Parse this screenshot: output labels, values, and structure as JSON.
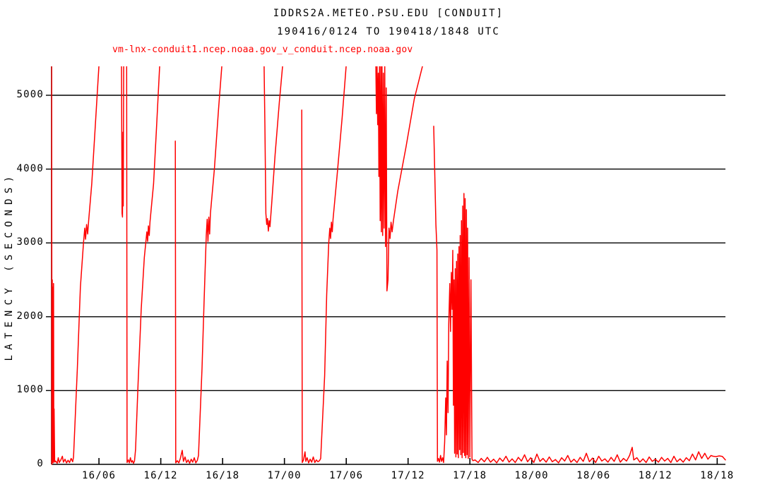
{
  "header": {
    "title": "IDDRS2A.METEO.PSU.EDU [CONDUIT]",
    "subtitle": "190416/0124 TO 190418/1848 UTC"
  },
  "colors": {
    "trace": "#ff0000",
    "axis": "#000000",
    "background": "#ffffff"
  },
  "chart_data": {
    "type": "line",
    "title": "IDDRS2A.METEO.PSU.EDU [CONDUIT]",
    "subtitle": "190416/0124 TO 190418/1848 UTC",
    "xlabel": "",
    "ylabel": "LATENCY (SECONDS)",
    "x_unit": "hours since 2019-04-16 00:00 UTC, tick labels are DD/HH",
    "xlim": [
      1.4,
      66.8
    ],
    "ylim": [
      0,
      5390
    ],
    "clip_note": "trace clipped at top of plot (~5390 s); gaps = off-scale high",
    "grid": "horizontal gridlines at labeled y ticks",
    "legend_position": "top-left above plot",
    "y_ticks": [
      {
        "v": 0,
        "label": "0"
      },
      {
        "v": 1000,
        "label": "1000"
      },
      {
        "v": 2000,
        "label": "2000"
      },
      {
        "v": 3000,
        "label": "3000"
      },
      {
        "v": 4000,
        "label": "4000"
      },
      {
        "v": 5000,
        "label": "5000"
      }
    ],
    "x_ticks": [
      {
        "t": 6,
        "label": "16/06"
      },
      {
        "t": 12,
        "label": "16/12"
      },
      {
        "t": 18,
        "label": "16/18"
      },
      {
        "t": 24,
        "label": "17/00"
      },
      {
        "t": 30,
        "label": "17/06"
      },
      {
        "t": 36,
        "label": "17/12"
      },
      {
        "t": 42,
        "label": "17/18"
      },
      {
        "t": 48,
        "label": "18/00"
      },
      {
        "t": 54,
        "label": "18/06"
      },
      {
        "t": 60,
        "label": "18/12"
      },
      {
        "t": 66,
        "label": "18/18"
      }
    ],
    "series": [
      {
        "name": "vm-lnx-conduit1.ncep.noaa.gov_v_conduit.ncep.noaa.gov",
        "color": "#ff0000",
        "points": [
          [
            1.4,
            20
          ],
          [
            1.41,
            5390
          ],
          [
            1.44,
            0
          ],
          [
            1.47,
            2500
          ],
          [
            1.5,
            30
          ],
          [
            1.53,
            2400
          ],
          [
            1.56,
            20
          ],
          [
            1.59,
            2450
          ],
          [
            1.62,
            40
          ],
          [
            1.65,
            750
          ],
          [
            1.7,
            30
          ],
          [
            1.8,
            45
          ],
          [
            1.95,
            15
          ],
          [
            2.05,
            90
          ],
          [
            2.15,
            25
          ],
          [
            2.3,
            60
          ],
          [
            2.45,
            110
          ],
          [
            2.55,
            30
          ],
          [
            2.7,
            70
          ],
          [
            2.85,
            20
          ],
          [
            3.0,
            55
          ],
          [
            3.15,
            25
          ],
          [
            3.3,
            80
          ],
          [
            3.45,
            35
          ],
          [
            3.53,
            100
          ],
          [
            3.9,
            1300
          ],
          [
            4.2,
            2400
          ],
          [
            4.5,
            3000
          ],
          [
            4.62,
            3200
          ],
          [
            4.7,
            3050
          ],
          [
            4.8,
            3250
          ],
          [
            4.9,
            3120
          ],
          [
            5.0,
            3300
          ],
          [
            5.3,
            3800
          ],
          [
            5.65,
            4600
          ],
          [
            5.99,
            5390
          ],
          null,
          [
            8.19,
            5390
          ],
          [
            8.24,
            3400
          ],
          [
            8.28,
            3350
          ],
          [
            8.33,
            4500
          ],
          [
            8.36,
            3500
          ],
          [
            8.4,
            5390
          ],
          null,
          [
            8.69,
            5390
          ],
          [
            8.73,
            25
          ],
          [
            8.85,
            60
          ],
          [
            8.95,
            20
          ],
          [
            9.05,
            90
          ],
          [
            9.15,
            30
          ],
          [
            9.25,
            50
          ],
          [
            9.35,
            15
          ],
          [
            9.45,
            45
          ],
          [
            9.55,
            200
          ],
          [
            9.8,
            1100
          ],
          [
            10.1,
            2100
          ],
          [
            10.4,
            2800
          ],
          [
            10.65,
            3150
          ],
          [
            10.72,
            3020
          ],
          [
            10.8,
            3230
          ],
          [
            10.88,
            3100
          ],
          [
            10.95,
            3280
          ],
          [
            11.3,
            3800
          ],
          [
            11.6,
            4600
          ],
          [
            11.89,
            5390
          ],
          null,
          [
            13.41,
            4380
          ],
          [
            13.45,
            20
          ],
          [
            13.6,
            50
          ],
          [
            13.75,
            20
          ],
          [
            13.9,
            80
          ],
          [
            14.08,
            190
          ],
          [
            14.2,
            40
          ],
          [
            14.35,
            100
          ],
          [
            14.5,
            25
          ],
          [
            14.65,
            60
          ],
          [
            14.8,
            15
          ],
          [
            14.95,
            70
          ],
          [
            15.1,
            30
          ],
          [
            15.25,
            90
          ],
          [
            15.4,
            20
          ],
          [
            15.55,
            55
          ],
          [
            15.66,
            120
          ],
          [
            16.0,
            1300
          ],
          [
            16.2,
            2200
          ],
          [
            16.41,
            3100
          ],
          [
            16.5,
            3320
          ],
          [
            16.58,
            3020
          ],
          [
            16.66,
            3350
          ],
          [
            16.74,
            3120
          ],
          [
            16.82,
            3400
          ],
          [
            17.2,
            4000
          ],
          [
            17.6,
            4800
          ],
          [
            17.92,
            5390
          ],
          null,
          [
            22.03,
            5390
          ],
          [
            22.1,
            4600
          ],
          [
            22.2,
            3400
          ],
          [
            22.28,
            3250
          ],
          [
            22.36,
            3330
          ],
          [
            22.44,
            3160
          ],
          [
            22.52,
            3300
          ],
          [
            22.6,
            3220
          ],
          [
            22.75,
            3500
          ],
          [
            23.1,
            4200
          ],
          [
            23.5,
            4900
          ],
          [
            23.82,
            5390
          ],
          null,
          [
            25.68,
            4800
          ],
          [
            25.73,
            25
          ],
          [
            25.85,
            60
          ],
          [
            26.0,
            170
          ],
          [
            26.08,
            40
          ],
          [
            26.2,
            90
          ],
          [
            26.35,
            20
          ],
          [
            26.5,
            70
          ],
          [
            26.65,
            30
          ],
          [
            26.8,
            100
          ],
          [
            26.95,
            25
          ],
          [
            27.1,
            60
          ],
          [
            27.25,
            35
          ],
          [
            27.4,
            50
          ],
          [
            27.52,
            80
          ],
          [
            27.9,
            1200
          ],
          [
            28.1,
            2300
          ],
          [
            28.3,
            3000
          ],
          [
            28.4,
            3200
          ],
          [
            28.48,
            3060
          ],
          [
            28.56,
            3280
          ],
          [
            28.64,
            3150
          ],
          [
            28.72,
            3320
          ],
          [
            29.1,
            3900
          ],
          [
            29.6,
            4700
          ],
          [
            29.99,
            5390
          ],
          null,
          [
            32.87,
            5390
          ],
          [
            32.93,
            4750
          ],
          [
            32.99,
            5390
          ],
          [
            33.05,
            4600
          ],
          [
            33.11,
            5300
          ],
          [
            33.17,
            3900
          ],
          [
            33.23,
            5390
          ],
          [
            33.29,
            3300
          ],
          [
            33.35,
            5390
          ],
          [
            33.41,
            3150
          ],
          [
            33.47,
            5390
          ],
          [
            33.53,
            3100
          ],
          [
            33.6,
            5300
          ],
          [
            33.67,
            3200
          ],
          [
            33.74,
            5390
          ],
          [
            33.81,
            2950
          ],
          [
            33.88,
            5100
          ],
          [
            33.95,
            2350
          ],
          [
            34.05,
            2500
          ],
          [
            34.15,
            3200
          ],
          [
            34.25,
            3060
          ],
          [
            34.35,
            3280
          ],
          [
            34.45,
            3150
          ],
          [
            34.58,
            3300
          ],
          [
            35.0,
            3700
          ],
          [
            35.8,
            4300
          ],
          [
            36.6,
            4950
          ],
          [
            37.39,
            5390
          ],
          null,
          [
            38.49,
            4580
          ],
          [
            38.6,
            3900
          ],
          [
            38.7,
            3250
          ],
          [
            38.76,
            3050
          ],
          [
            38.8,
            2900
          ],
          [
            38.85,
            40
          ],
          [
            38.95,
            80
          ],
          [
            39.05,
            30
          ],
          [
            39.15,
            120
          ],
          [
            39.25,
            40
          ],
          [
            39.35,
            90
          ],
          [
            39.45,
            25
          ],
          [
            39.55,
            300
          ],
          [
            39.65,
            900
          ],
          [
            39.72,
            400
          ],
          [
            39.8,
            1400
          ],
          [
            39.88,
            700
          ],
          [
            39.95,
            1900
          ],
          [
            40.05,
            2450
          ],
          [
            40.12,
            1800
          ],
          [
            40.2,
            2600
          ],
          [
            40.28,
            2100
          ],
          [
            40.34,
            2900
          ],
          [
            40.4,
            800
          ],
          [
            40.46,
            2500
          ],
          [
            40.52,
            150
          ],
          [
            40.58,
            2650
          ],
          [
            40.64,
            100
          ],
          [
            40.7,
            2750
          ],
          [
            40.76,
            140
          ],
          [
            40.82,
            2850
          ],
          [
            40.88,
            90
          ],
          [
            40.94,
            2950
          ],
          [
            41.0,
            200
          ],
          [
            41.06,
            3100
          ],
          [
            41.12,
            130
          ],
          [
            41.18,
            3300
          ],
          [
            41.24,
            90
          ],
          [
            41.3,
            3500
          ],
          [
            41.36,
            160
          ],
          [
            41.42,
            3670
          ],
          [
            41.48,
            120
          ],
          [
            41.54,
            3600
          ],
          [
            41.6,
            90
          ],
          [
            41.66,
            3450
          ],
          [
            41.72,
            130
          ],
          [
            41.78,
            3200
          ],
          [
            41.84,
            80
          ],
          [
            41.92,
            2800
          ],
          [
            42.0,
            100
          ],
          [
            42.1,
            2500
          ],
          [
            42.2,
            70
          ],
          [
            42.3,
            50
          ],
          [
            42.5,
            60
          ],
          [
            42.8,
            25
          ],
          [
            43.1,
            80
          ],
          [
            43.4,
            35
          ],
          [
            43.7,
            95
          ],
          [
            44.0,
            30
          ],
          [
            44.3,
            70
          ],
          [
            44.6,
            20
          ],
          [
            44.9,
            85
          ],
          [
            45.2,
            40
          ],
          [
            45.5,
            110
          ],
          [
            45.8,
            30
          ],
          [
            46.1,
            75
          ],
          [
            46.4,
            25
          ],
          [
            46.7,
            95
          ],
          [
            47.0,
            45
          ],
          [
            47.3,
            130
          ],
          [
            47.6,
            35
          ],
          [
            47.9,
            90
          ],
          [
            48.2,
            25
          ],
          [
            48.5,
            140
          ],
          [
            48.8,
            40
          ],
          [
            49.1,
            80
          ],
          [
            49.4,
            30
          ],
          [
            49.7,
            100
          ],
          [
            50.0,
            35
          ],
          [
            50.3,
            65
          ],
          [
            50.6,
            20
          ],
          [
            50.9,
            90
          ],
          [
            51.2,
            45
          ],
          [
            51.5,
            120
          ],
          [
            51.8,
            30
          ],
          [
            52.1,
            70
          ],
          [
            52.4,
            25
          ],
          [
            52.7,
            95
          ],
          [
            53.0,
            40
          ],
          [
            53.3,
            150
          ],
          [
            53.6,
            35
          ],
          [
            53.9,
            85
          ],
          [
            54.2,
            25
          ],
          [
            54.5,
            110
          ],
          [
            54.8,
            45
          ],
          [
            55.1,
            75
          ],
          [
            55.4,
            30
          ],
          [
            55.7,
            95
          ],
          [
            56.0,
            40
          ],
          [
            56.3,
            130
          ],
          [
            56.6,
            30
          ],
          [
            56.9,
            80
          ],
          [
            57.2,
            45
          ],
          [
            57.5,
            120
          ],
          [
            57.75,
            230
          ],
          [
            57.9,
            60
          ],
          [
            58.2,
            90
          ],
          [
            58.5,
            30
          ],
          [
            58.8,
            75
          ],
          [
            59.1,
            25
          ],
          [
            59.4,
            100
          ],
          [
            59.7,
            40
          ],
          [
            60.0,
            70
          ],
          [
            60.3,
            30
          ],
          [
            60.6,
            95
          ],
          [
            60.9,
            45
          ],
          [
            61.2,
            80
          ],
          [
            61.5,
            25
          ],
          [
            61.8,
            110
          ],
          [
            62.1,
            35
          ],
          [
            62.4,
            75
          ],
          [
            62.7,
            30
          ],
          [
            63.0,
            90
          ],
          [
            63.3,
            50
          ],
          [
            63.6,
            140
          ],
          [
            63.9,
            60
          ],
          [
            64.2,
            170
          ],
          [
            64.5,
            80
          ],
          [
            64.8,
            150
          ],
          [
            65.1,
            70
          ],
          [
            65.4,
            120
          ],
          [
            65.6,
            110
          ],
          [
            65.9,
            105
          ],
          [
            66.2,
            115
          ],
          [
            66.5,
            108
          ],
          [
            66.8,
            60
          ]
        ]
      }
    ]
  }
}
